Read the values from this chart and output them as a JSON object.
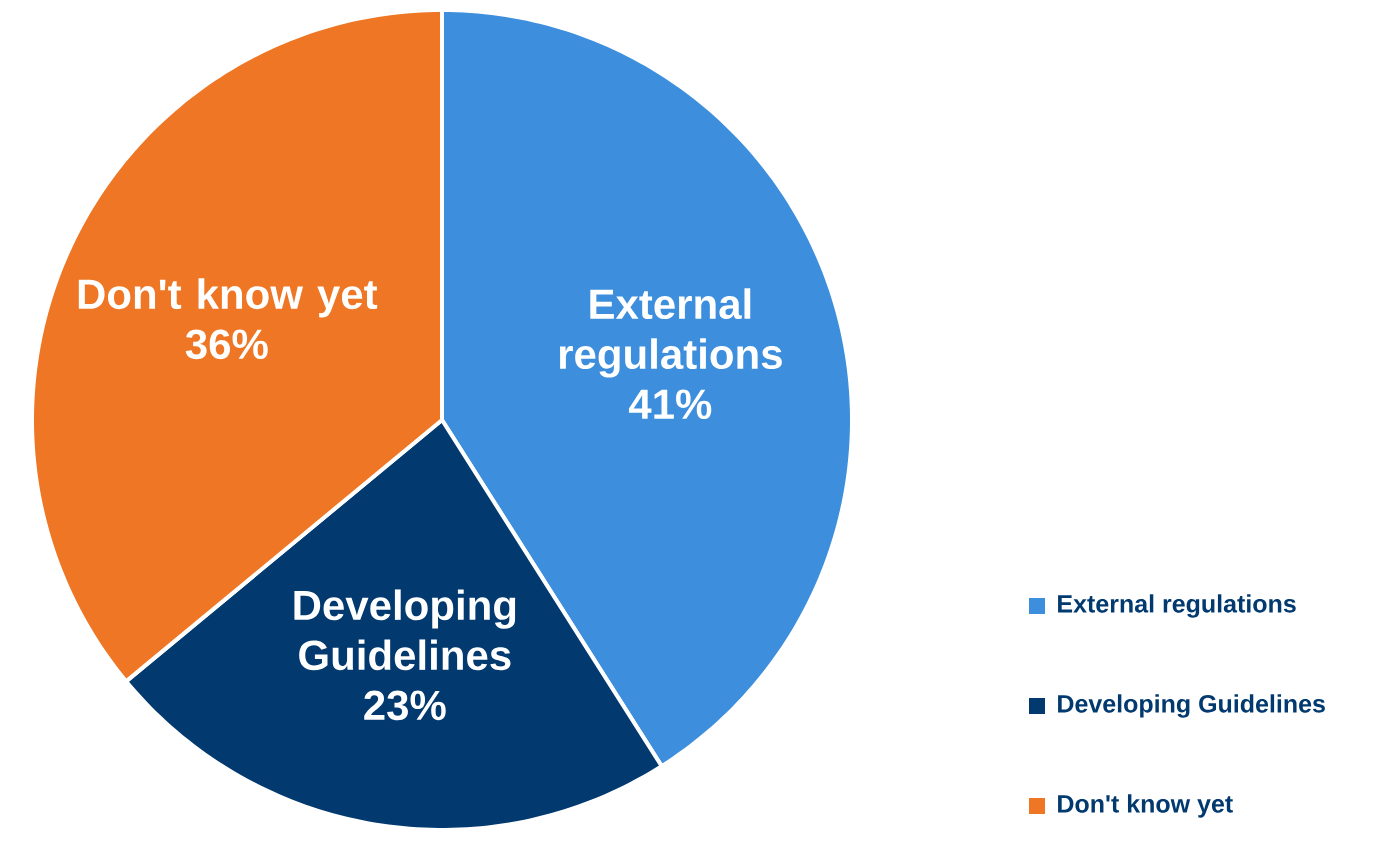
{
  "chart_data": {
    "type": "pie",
    "categories": [
      "External regulations",
      "Developing Guidelines",
      "Don't know yet"
    ],
    "values": [
      41,
      23,
      36
    ],
    "value_labels": [
      "41%",
      "23%",
      "36%"
    ],
    "colors": [
      "#3d8fdd",
      "#023a70",
      "#ee7624"
    ],
    "legend": "bottom right"
  }
}
